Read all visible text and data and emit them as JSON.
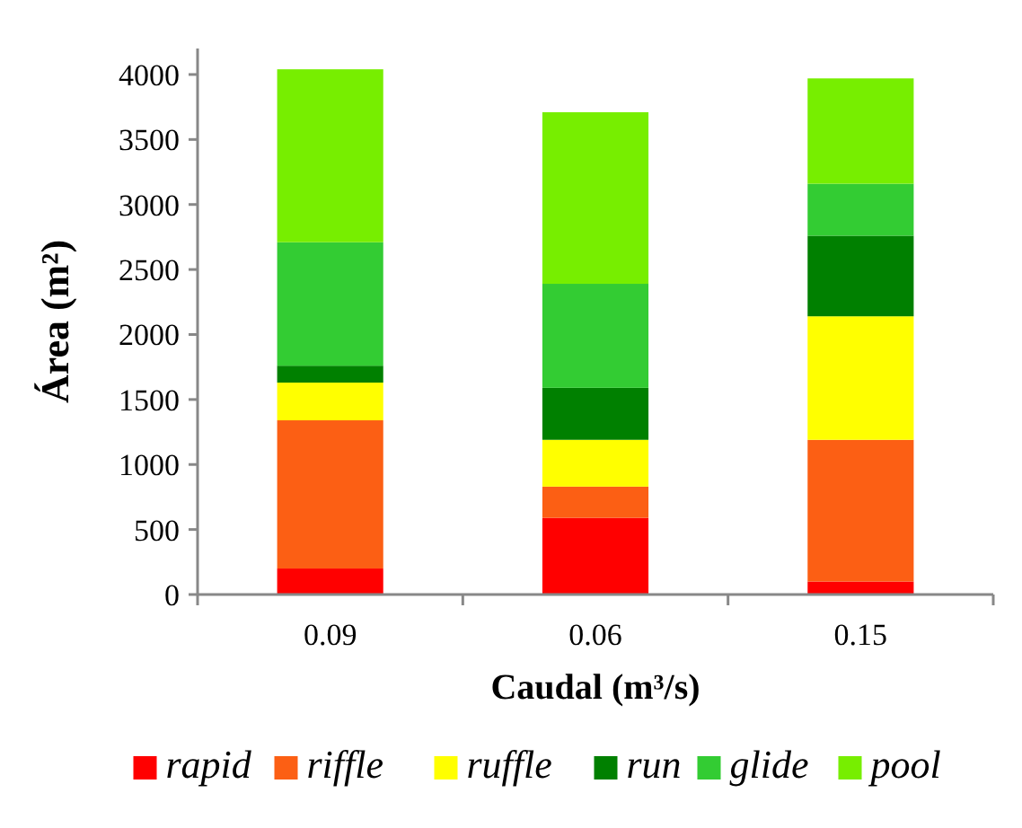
{
  "chart_data": {
    "type": "bar",
    "stacked": true,
    "xlabel": "Caudal (m³/s)",
    "ylabel": "Área (m²)",
    "categories": [
      "0.09",
      "0.06",
      "0.15"
    ],
    "series": [
      {
        "name": "rapid",
        "color": "#ff0000",
        "values": [
          200,
          590,
          100
        ]
      },
      {
        "name": "riffle",
        "color": "#fc5f14",
        "values": [
          1140,
          240,
          1090
        ]
      },
      {
        "name": "ruffle",
        "color": "#ffff00",
        "values": [
          290,
          360,
          950
        ]
      },
      {
        "name": "run",
        "color": "#008000",
        "values": [
          130,
          400,
          620
        ]
      },
      {
        "name": "glide",
        "color": "#33cc33",
        "values": [
          950,
          800,
          400
        ]
      },
      {
        "name": "pool",
        "color": "#77ee00",
        "values": [
          1330,
          1320,
          810
        ]
      }
    ],
    "ylim": [
      0,
      4200
    ],
    "yticks": [
      0,
      500,
      1000,
      1500,
      2000,
      2500,
      3000,
      3500,
      4000
    ],
    "grid": false,
    "legend": "bottom"
  }
}
